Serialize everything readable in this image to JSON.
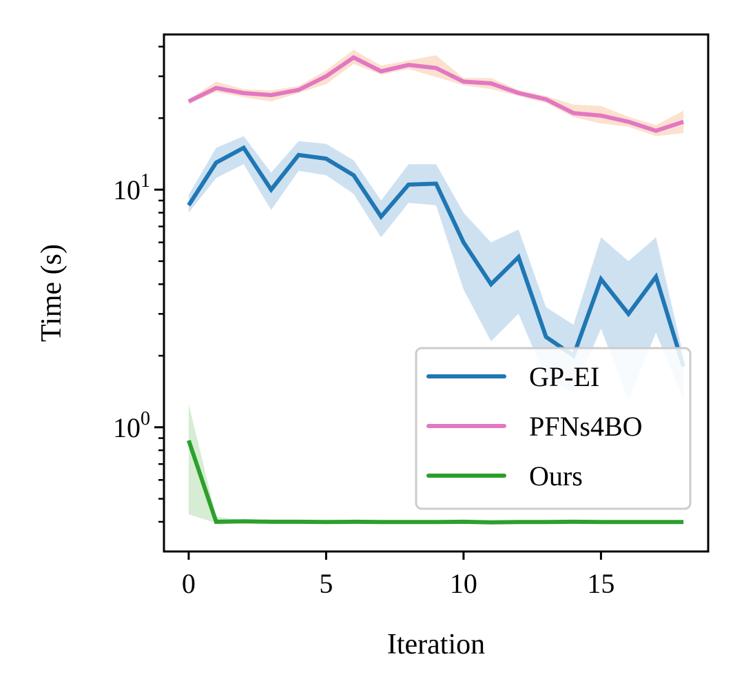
{
  "chart_data": {
    "type": "line",
    "xlabel": "Iteration",
    "ylabel": "Time (s)",
    "yscale": "log",
    "xlim": [
      -0.9,
      18.9
    ],
    "ylim": [
      0.3,
      45
    ],
    "xticks": [
      0,
      5,
      10,
      15
    ],
    "xtick_labels": [
      "0",
      "5",
      "10",
      "15"
    ],
    "yticks_major": [
      1,
      10
    ],
    "ytick_labels": [
      {
        "base": "10",
        "exp": "0"
      },
      {
        "base": "10",
        "exp": "1"
      }
    ],
    "yticks_minor": [
      0.4,
      0.5,
      0.6,
      0.7,
      0.8,
      0.9,
      2,
      3,
      4,
      5,
      6,
      7,
      8,
      9,
      20,
      30,
      40
    ],
    "legend_position": "lower-right",
    "x": [
      0,
      1,
      2,
      3,
      4,
      5,
      6,
      7,
      8,
      9,
      10,
      11,
      12,
      13,
      14,
      15,
      16,
      17,
      18
    ],
    "series": [
      {
        "name": "GP-EI",
        "color": "#1f77b4",
        "band_color": "#c6dcee",
        "values": [
          8.6,
          13.0,
          15.0,
          10.0,
          14.0,
          13.5,
          11.5,
          7.7,
          10.5,
          10.6,
          6.0,
          4.0,
          5.2,
          2.4,
          2.0,
          4.2,
          3.0,
          4.3,
          1.8
        ],
        "lower": [
          8.0,
          11.2,
          12.8,
          8.2,
          12.0,
          11.5,
          9.6,
          6.3,
          8.8,
          8.6,
          3.8,
          2.3,
          3.0,
          1.6,
          1.4,
          2.6,
          1.3,
          2.5,
          1.3
        ],
        "upper": [
          9.5,
          15.0,
          16.8,
          11.8,
          16.0,
          15.6,
          13.3,
          9.0,
          12.8,
          12.8,
          8.0,
          6.0,
          6.8,
          3.2,
          2.7,
          6.3,
          5.0,
          6.3,
          2.0
        ]
      },
      {
        "name": "PFNs4BO",
        "color": "#e377c2",
        "band_color": "#fcdcc8",
        "values": [
          23.5,
          26.8,
          25.5,
          25.0,
          26.3,
          30.0,
          36.0,
          31.5,
          33.5,
          32.5,
          28.5,
          28.0,
          25.5,
          24.0,
          21.0,
          20.5,
          19.3,
          17.7,
          19.3
        ],
        "lower": [
          23.0,
          25.8,
          24.5,
          23.5,
          25.5,
          27.8,
          33.8,
          30.5,
          32.2,
          29.8,
          27.5,
          26.5,
          24.8,
          23.2,
          20.2,
          19.0,
          18.4,
          16.8,
          17.3
        ],
        "upper": [
          24.0,
          28.5,
          26.5,
          26.2,
          27.3,
          31.8,
          38.8,
          33.3,
          35.0,
          36.8,
          29.5,
          29.5,
          26.3,
          24.8,
          22.8,
          22.5,
          20.3,
          18.7,
          21.5
        ]
      },
      {
        "name": "Ours",
        "color": "#2ca02c",
        "band_color": "#cfeacb",
        "values": [
          0.88,
          0.4,
          0.402,
          0.4,
          0.4,
          0.399,
          0.4,
          0.399,
          0.399,
          0.399,
          0.4,
          0.398,
          0.399,
          0.399,
          0.4,
          0.399,
          0.399,
          0.399,
          0.399
        ],
        "lower": [
          0.43,
          0.395,
          0.398,
          0.397,
          0.397,
          0.396,
          0.397,
          0.396,
          0.396,
          0.396,
          0.397,
          0.395,
          0.396,
          0.396,
          0.397,
          0.396,
          0.396,
          0.396,
          0.396
        ],
        "upper": [
          1.25,
          0.42,
          0.406,
          0.403,
          0.403,
          0.402,
          0.403,
          0.402,
          0.402,
          0.402,
          0.403,
          0.401,
          0.402,
          0.402,
          0.403,
          0.402,
          0.402,
          0.402,
          0.402
        ]
      }
    ]
  }
}
